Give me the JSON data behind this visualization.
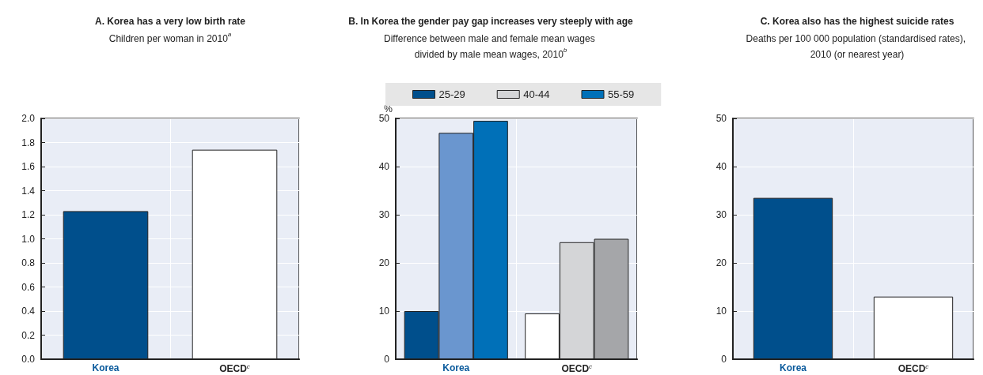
{
  "chart_data": [
    {
      "type": "bar",
      "title": "A. Korea has a very low birth rate",
      "subtitle": "Children per woman in 2010$^{a}$",
      "categories": [
        "Korea",
        "OECD$^{c}$"
      ],
      "values": [
        1.23,
        1.74
      ],
      "colors": [
        "#004f8c",
        "#ffffff"
      ],
      "ylim": [
        0,
        2
      ],
      "yticks": [
        {
          "value": 0,
          "label": "0.0"
        },
        {
          "value": 0.2,
          "label": "0.2"
        },
        {
          "value": 0.4,
          "label": "0.4"
        },
        {
          "value": 0.6,
          "label": "0.6"
        },
        {
          "value": 0.8,
          "label": "0.8"
        },
        {
          "value": 1,
          "label": "1.0"
        },
        {
          "value": 1.2,
          "label": "1.2"
        },
        {
          "value": 1.4,
          "label": "1.4"
        },
        {
          "value": 1.6,
          "label": "1.6"
        },
        {
          "value": 1.8,
          "label": "1.8"
        },
        {
          "value": 2,
          "label": "2.0"
        }
      ],
      "grid": true,
      "legend": false
    },
    {
      "type": "bar",
      "title": "B. In Korea the gender pay gap increases very steeply with age",
      "subtitle": "Difference between male and female mean wages divided by male mean wages, 2010$^{b}$",
      "ylabel": "%",
      "categories": [
        "Korea",
        "OECD$^{c}$"
      ],
      "series": [
        {
          "name": "25-29",
          "color": "#004f8c",
          "colors": [
            "#004f8c",
            "#ffffff"
          ],
          "values": [
            10,
            9.5
          ]
        },
        {
          "name": "40-44",
          "color": "#d4d5d7",
          "colors": [
            "#6a96cf",
            "#d4d5d7"
          ],
          "values": [
            47,
            24.3
          ]
        },
        {
          "name": "55-59",
          "color": "#0070b8",
          "colors": [
            "#0070b8",
            "#a5a6a9"
          ],
          "values": [
            49.5,
            25
          ]
        }
      ],
      "ylim": [
        0,
        50
      ],
      "yticks": [
        0,
        10,
        20,
        30,
        40,
        50
      ],
      "grid": true,
      "legend": "top"
    },
    {
      "type": "bar",
      "title": "C. Korea also has the highest suicide rates",
      "subtitle": "Deaths per 100 000 population (standardised rates), 2010 (or nearest year)",
      "categories": [
        "Korea",
        "OECD$^{c}$"
      ],
      "values": [
        33.5,
        13
      ],
      "colors": [
        "#004f8c",
        "#ffffff"
      ],
      "ylim": [
        0,
        50
      ],
      "yticks": [
        0,
        10,
        20,
        30,
        40,
        50
      ],
      "grid": true,
      "legend": false
    }
  ]
}
